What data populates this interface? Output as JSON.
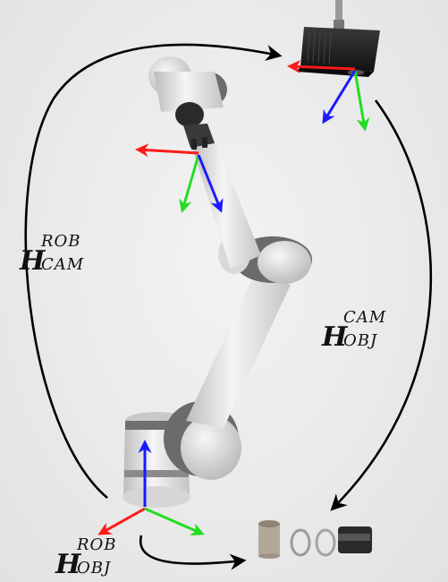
{
  "labels": {
    "robot_to_camera": {
      "symbol": "H",
      "sup": "ROB",
      "sub": "CAM"
    },
    "camera_to_object": {
      "symbol": "H",
      "sup": "CAM",
      "sub": "OBJ"
    },
    "robot_to_object": {
      "symbol": "H",
      "sup": "ROB",
      "sub": "OBJ"
    }
  },
  "colors": {
    "axis_x": "#ff1a1a",
    "axis_y": "#22dd22",
    "axis_z": "#1a1aff",
    "arc": "#000000",
    "robot_body": "#dcdcdc",
    "robot_joint": "#6b6b6b",
    "camera": "#1e1e1e",
    "background": "#ececec"
  },
  "icons": [
    "robot-arm-icon",
    "camera-icon",
    "coordinate-frame-icon",
    "cylinder-objects-icon"
  ]
}
